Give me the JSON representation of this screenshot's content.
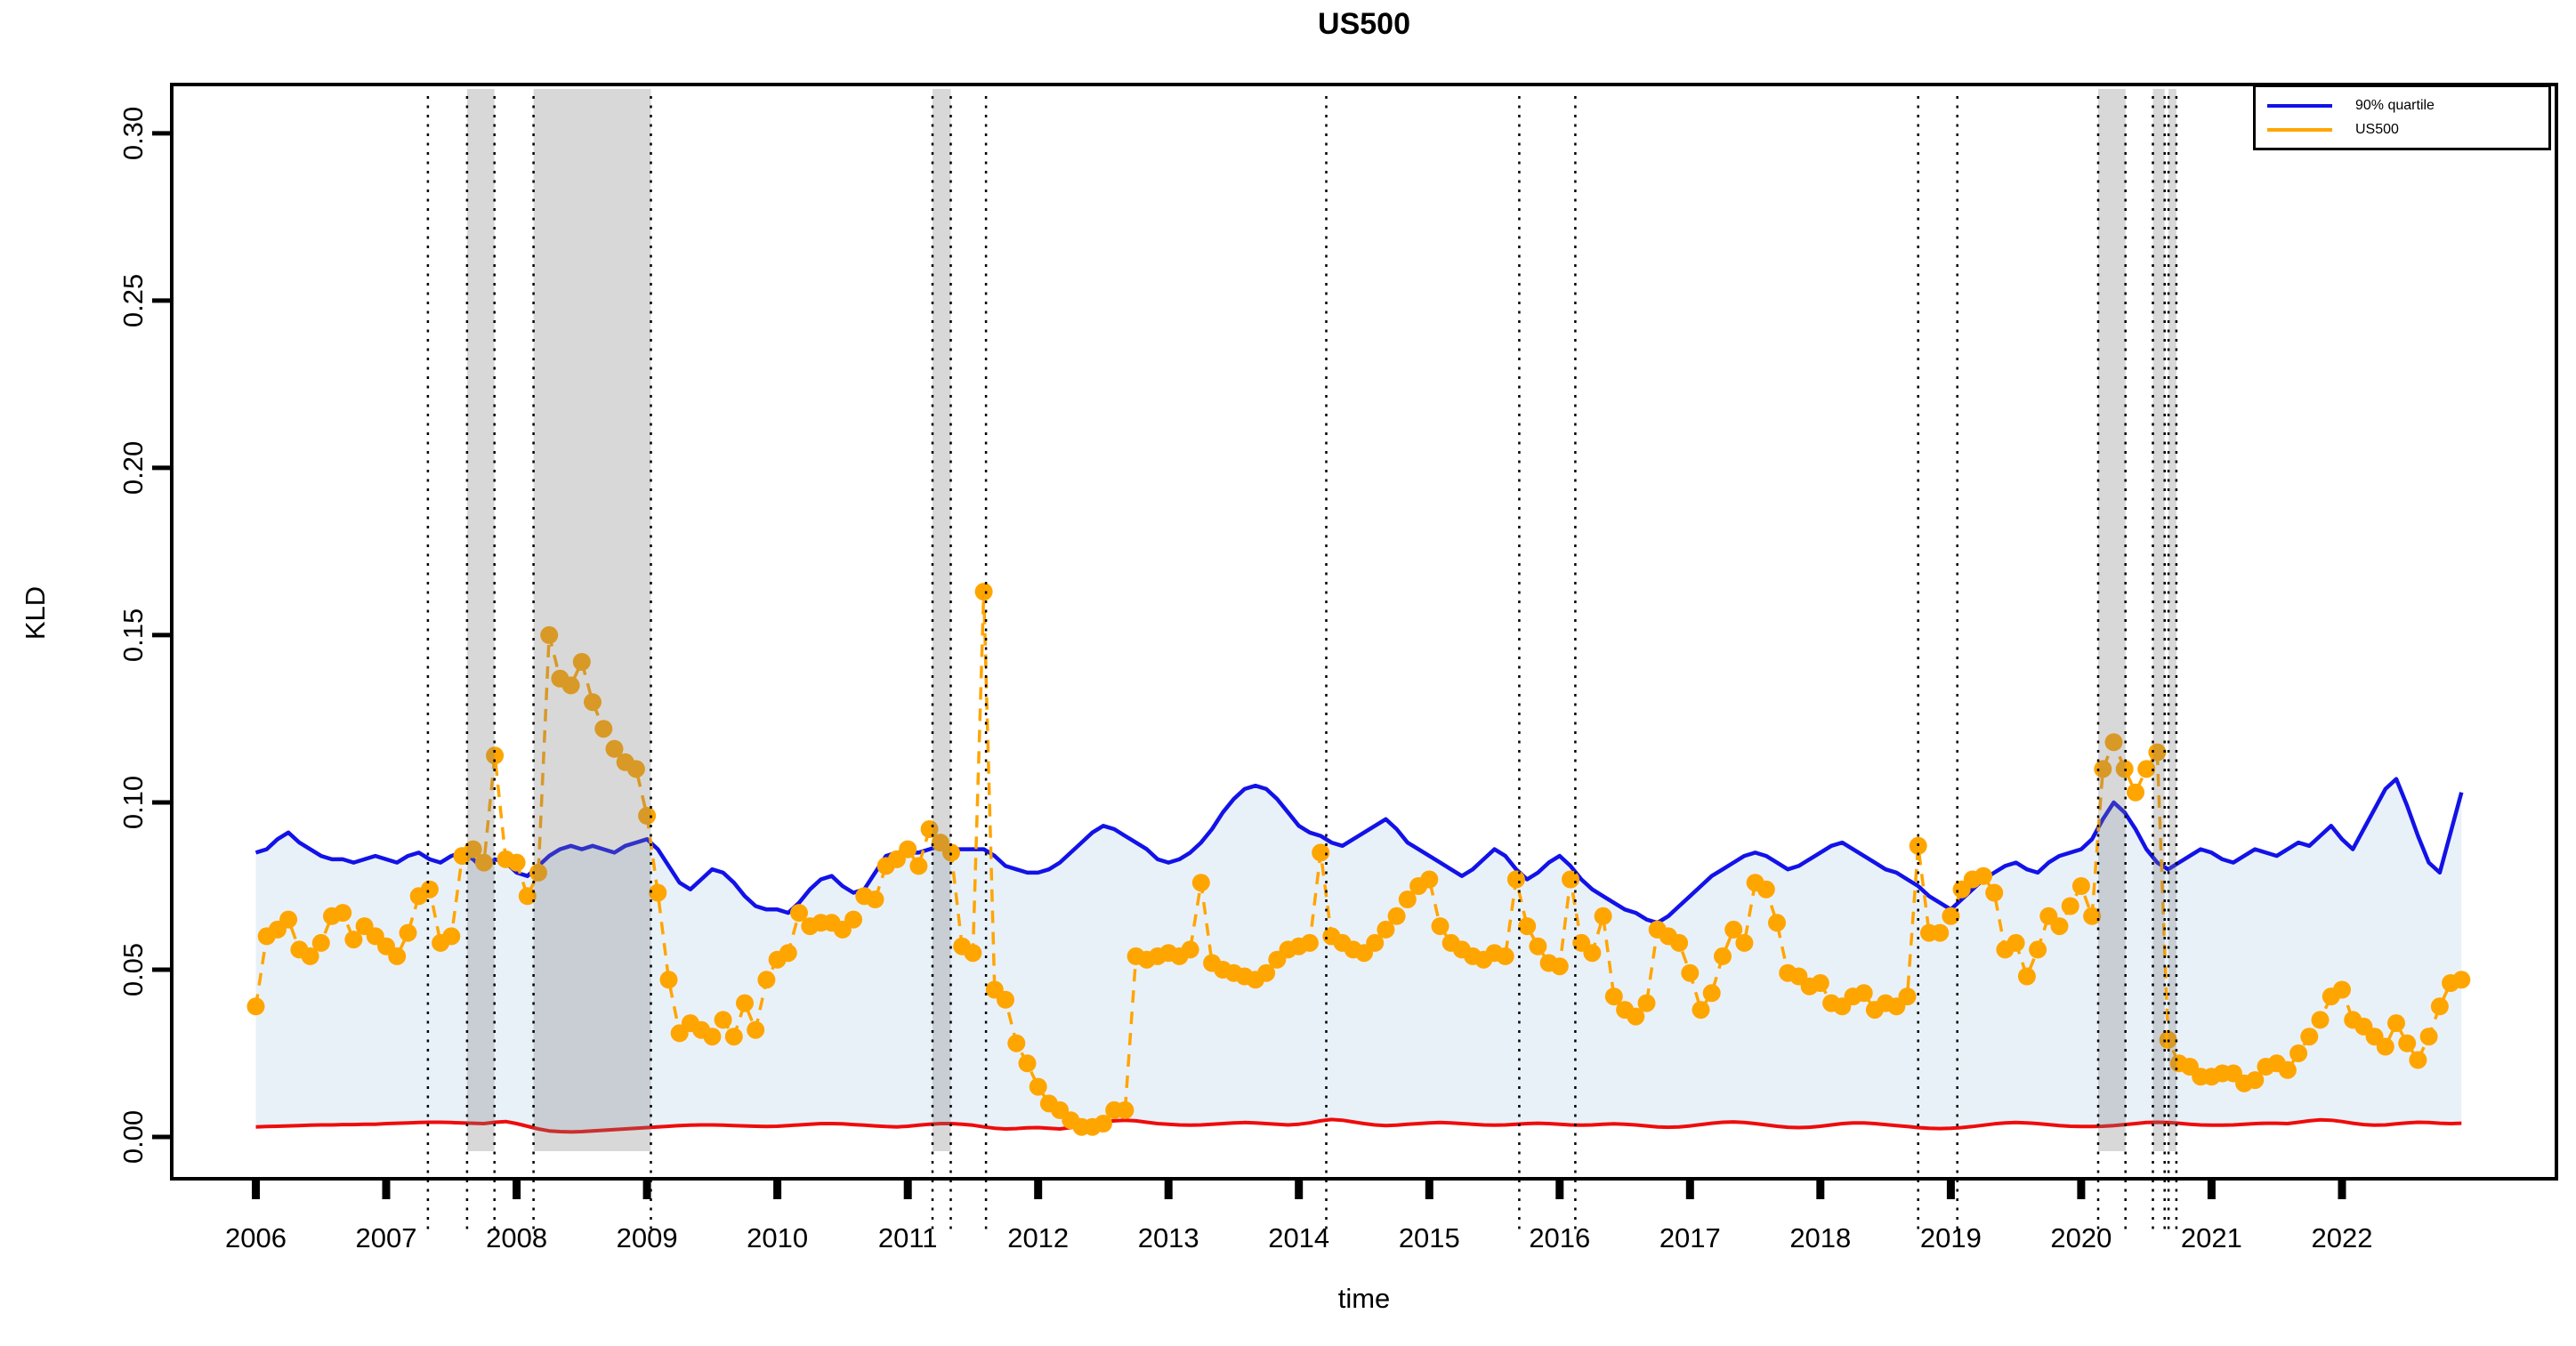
{
  "title": "US500",
  "axes": {
    "x": {
      "label": "time",
      "tick_labels": [
        "2006",
        "2007",
        "2008",
        "2009",
        "2010",
        "2011",
        "2012",
        "2013",
        "2014",
        "2015",
        "2016",
        "2017",
        "2018",
        "2019",
        "2020",
        "2021",
        "2022"
      ]
    },
    "y": {
      "label": "KLD",
      "tick_labels": [
        "0.00",
        "0.05",
        "0.10",
        "0.15",
        "0.20",
        "0.25",
        "0.30"
      ]
    }
  },
  "legend": {
    "items": [
      {
        "label": "90% quartile",
        "color": "#1212e8"
      },
      {
        "label": "US500",
        "color": "#ffa500"
      }
    ]
  },
  "colors": {
    "quartile_line": "#1212e8",
    "us500_line": "#ffa500",
    "lower_line": "#ee0c0c",
    "fill": "#e9f1f8",
    "band": "rgba(125,125,125,0.30)",
    "event_line": "#000000",
    "axis": "#000000"
  },
  "chart_data": {
    "type": "line",
    "title": "US500",
    "xlabel": "time",
    "ylabel": "KLD",
    "x_unit": "decimal_year_monthly",
    "x_start": 2006.0,
    "x_end": 2022.917,
    "xlim": [
      2005.355,
      2023.645
    ],
    "ylim": [
      -0.0125,
      0.3146
    ],
    "x_tick_values": [
      2006,
      2007,
      2008,
      2009,
      2010,
      2011,
      2012,
      2013,
      2014,
      2015,
      2016,
      2017,
      2018,
      2019,
      2020,
      2021,
      2022
    ],
    "y_tick_values": [
      0.0,
      0.05,
      0.1,
      0.15,
      0.2,
      0.25,
      0.3
    ],
    "grid": false,
    "legend_position": "topright",
    "fill_between": [
      "lower bound",
      "90% quartile"
    ],
    "shaded_bands": [
      {
        "from": 2007.62,
        "to": 2007.83
      },
      {
        "from": 2008.13,
        "to": 2009.03
      },
      {
        "from": 2011.19,
        "to": 2011.33
      },
      {
        "from": 2020.13,
        "to": 2020.34
      },
      {
        "from": 2020.55,
        "to": 2020.64
      },
      {
        "from": 2020.67,
        "to": 2020.73
      }
    ],
    "event_lines": [
      2007.32,
      2007.62,
      2007.83,
      2008.13,
      2009.03,
      2011.19,
      2011.33,
      2011.6,
      2014.21,
      2015.69,
      2016.12,
      2018.75,
      2019.05,
      2020.13,
      2020.34,
      2020.55,
      2020.64,
      2020.67,
      2020.73
    ],
    "series": [
      {
        "name": "90% quartile",
        "color": "#1212e8",
        "style": "solid",
        "values": [
          0.085,
          0.086,
          0.089,
          0.091,
          0.088,
          0.086,
          0.084,
          0.083,
          0.083,
          0.082,
          0.083,
          0.084,
          0.083,
          0.082,
          0.084,
          0.085,
          0.083,
          0.082,
          0.084,
          0.085,
          0.083,
          0.08,
          0.083,
          0.082,
          0.079,
          0.078,
          0.081,
          0.084,
          0.086,
          0.087,
          0.086,
          0.087,
          0.086,
          0.085,
          0.087,
          0.088,
          0.089,
          0.086,
          0.081,
          0.076,
          0.074,
          0.077,
          0.08,
          0.079,
          0.076,
          0.072,
          0.069,
          0.068,
          0.068,
          0.067,
          0.07,
          0.074,
          0.077,
          0.078,
          0.075,
          0.073,
          0.074,
          0.079,
          0.084,
          0.085,
          0.085,
          0.085,
          0.086,
          0.087,
          0.086,
          0.086,
          0.086,
          0.086,
          0.084,
          0.081,
          0.08,
          0.079,
          0.079,
          0.08,
          0.082,
          0.085,
          0.088,
          0.091,
          0.093,
          0.092,
          0.09,
          0.088,
          0.086,
          0.083,
          0.082,
          0.083,
          0.085,
          0.088,
          0.092,
          0.097,
          0.101,
          0.104,
          0.105,
          0.104,
          0.101,
          0.097,
          0.093,
          0.091,
          0.09,
          0.088,
          0.087,
          0.089,
          0.091,
          0.093,
          0.095,
          0.092,
          0.088,
          0.086,
          0.084,
          0.082,
          0.08,
          0.078,
          0.08,
          0.083,
          0.086,
          0.084,
          0.08,
          0.077,
          0.079,
          0.082,
          0.084,
          0.081,
          0.077,
          0.074,
          0.072,
          0.07,
          0.068,
          0.067,
          0.065,
          0.064,
          0.066,
          0.069,
          0.072,
          0.075,
          0.078,
          0.08,
          0.082,
          0.084,
          0.085,
          0.084,
          0.082,
          0.08,
          0.081,
          0.083,
          0.085,
          0.087,
          0.088,
          0.086,
          0.084,
          0.082,
          0.08,
          0.079,
          0.077,
          0.075,
          0.072,
          0.07,
          0.068,
          0.071,
          0.074,
          0.077,
          0.079,
          0.081,
          0.082,
          0.08,
          0.079,
          0.082,
          0.084,
          0.085,
          0.086,
          0.089,
          0.095,
          0.1,
          0.097,
          0.092,
          0.086,
          0.082,
          0.08,
          0.082,
          0.084,
          0.086,
          0.085,
          0.083,
          0.082,
          0.084,
          0.086,
          0.085,
          0.084,
          0.086,
          0.088,
          0.087,
          0.09,
          0.093,
          0.089,
          0.086,
          0.092,
          0.098,
          0.104,
          0.107,
          0.099,
          0.09,
          0.082,
          0.079,
          0.091,
          0.103
        ]
      },
      {
        "name": "US500",
        "color": "#ffa500",
        "style": "dashed-with-points",
        "values": [
          0.039,
          0.06,
          0.062,
          0.065,
          0.056,
          0.054,
          0.058,
          0.066,
          0.067,
          0.059,
          0.063,
          0.06,
          0.057,
          0.054,
          0.061,
          0.072,
          0.074,
          0.058,
          0.06,
          0.084,
          0.086,
          0.082,
          0.114,
          0.083,
          0.082,
          0.072,
          0.079,
          0.15,
          0.137,
          0.135,
          0.142,
          0.13,
          0.122,
          0.116,
          0.112,
          0.11,
          0.096,
          0.073,
          0.047,
          0.031,
          0.034,
          0.032,
          0.03,
          0.035,
          0.03,
          0.04,
          0.032,
          0.047,
          0.053,
          0.055,
          0.067,
          0.063,
          0.064,
          0.064,
          0.062,
          0.065,
          0.072,
          0.071,
          0.081,
          0.083,
          0.086,
          0.081,
          0.092,
          0.088,
          0.085,
          0.057,
          0.055,
          0.163,
          0.044,
          0.041,
          0.028,
          0.022,
          0.015,
          0.01,
          0.008,
          0.005,
          0.003,
          0.003,
          0.004,
          0.008,
          0.008,
          0.054,
          0.053,
          0.054,
          0.055,
          0.054,
          0.056,
          0.076,
          0.052,
          0.05,
          0.049,
          0.048,
          0.047,
          0.049,
          0.053,
          0.056,
          0.057,
          0.058,
          0.085,
          0.06,
          0.058,
          0.056,
          0.055,
          0.058,
          0.062,
          0.066,
          0.071,
          0.075,
          0.077,
          0.063,
          0.058,
          0.056,
          0.054,
          0.053,
          0.055,
          0.054,
          0.077,
          0.063,
          0.057,
          0.052,
          0.051,
          0.077,
          0.058,
          0.055,
          0.066,
          0.042,
          0.038,
          0.036,
          0.04,
          0.062,
          0.06,
          0.058,
          0.049,
          0.038,
          0.043,
          0.054,
          0.062,
          0.058,
          0.076,
          0.074,
          0.064,
          0.049,
          0.048,
          0.045,
          0.046,
          0.04,
          0.039,
          0.042,
          0.043,
          0.038,
          0.04,
          0.039,
          0.042,
          0.087,
          0.061,
          0.061,
          0.066,
          0.074,
          0.077,
          0.078,
          0.073,
          0.056,
          0.058,
          0.048,
          0.056,
          0.066,
          0.063,
          0.069,
          0.075,
          0.066,
          0.11,
          0.118,
          0.11,
          0.103,
          0.11,
          0.115,
          0.029,
          0.022,
          0.021,
          0.018,
          0.018,
          0.019,
          0.019,
          0.016,
          0.017,
          0.021,
          0.022,
          0.02,
          0.025,
          0.03,
          0.035,
          0.042,
          0.044,
          0.035,
          0.033,
          0.03,
          0.027,
          0.034,
          0.028,
          0.023,
          0.03,
          0.039,
          0.046,
          0.047
        ]
      },
      {
        "name": "lower bound",
        "color": "#ee0c0c",
        "style": "solid",
        "values": [
          0.003,
          0.0031,
          0.0032,
          0.0033,
          0.0034,
          0.0035,
          0.0036,
          0.0036,
          0.0037,
          0.0037,
          0.0038,
          0.0038,
          0.004,
          0.0041,
          0.0042,
          0.0043,
          0.0044,
          0.0044,
          0.0043,
          0.0042,
          0.0041,
          0.004,
          0.0044,
          0.0046,
          0.004,
          0.0032,
          0.0024,
          0.0018,
          0.0016,
          0.0015,
          0.0016,
          0.0018,
          0.002,
          0.0022,
          0.0024,
          0.0026,
          0.0028,
          0.003,
          0.0032,
          0.0034,
          0.0035,
          0.0036,
          0.0036,
          0.0035,
          0.0034,
          0.0033,
          0.0032,
          0.0031,
          0.0032,
          0.0034,
          0.0036,
          0.0038,
          0.004,
          0.004,
          0.0039,
          0.0037,
          0.0035,
          0.0033,
          0.0031,
          0.003,
          0.0032,
          0.0035,
          0.0038,
          0.004,
          0.004,
          0.0038,
          0.0035,
          0.003,
          0.0026,
          0.0024,
          0.0025,
          0.0027,
          0.0028,
          0.0026,
          0.0024,
          0.0028,
          0.0034,
          0.004,
          0.0045,
          0.0048,
          0.005,
          0.0048,
          0.0044,
          0.004,
          0.0038,
          0.0036,
          0.0035,
          0.0036,
          0.0038,
          0.004,
          0.0042,
          0.0043,
          0.0042,
          0.004,
          0.0038,
          0.0036,
          0.0038,
          0.0042,
          0.0048,
          0.0052,
          0.005,
          0.0045,
          0.004,
          0.0036,
          0.0034,
          0.0035,
          0.0038,
          0.004,
          0.0042,
          0.0043,
          0.0042,
          0.004,
          0.0038,
          0.0036,
          0.0035,
          0.0036,
          0.0038,
          0.004,
          0.0041,
          0.004,
          0.0038,
          0.0036,
          0.0035,
          0.0036,
          0.0038,
          0.0039,
          0.0038,
          0.0036,
          0.0033,
          0.003,
          0.0029,
          0.003,
          0.0033,
          0.0037,
          0.0041,
          0.0044,
          0.0045,
          0.0043,
          0.004,
          0.0036,
          0.0032,
          0.0029,
          0.0028,
          0.0029,
          0.0032,
          0.0036,
          0.004,
          0.0042,
          0.0042,
          0.004,
          0.0037,
          0.0034,
          0.0031,
          0.0028,
          0.0026,
          0.0025,
          0.0026,
          0.0028,
          0.0031,
          0.0035,
          0.0039,
          0.0042,
          0.0043,
          0.0042,
          0.004,
          0.0037,
          0.0034,
          0.0032,
          0.0031,
          0.0031,
          0.0032,
          0.0034,
          0.0037,
          0.004,
          0.0043,
          0.0044,
          0.0043,
          0.0041,
          0.0038,
          0.0036,
          0.0035,
          0.0035,
          0.0036,
          0.0038,
          0.004,
          0.0041,
          0.0041,
          0.004,
          0.0044,
          0.0048,
          0.0051,
          0.005,
          0.0046,
          0.0041,
          0.0037,
          0.0035,
          0.0036,
          0.0039,
          0.0042,
          0.0044,
          0.0043,
          0.0041,
          0.004,
          0.0041
        ]
      }
    ]
  }
}
